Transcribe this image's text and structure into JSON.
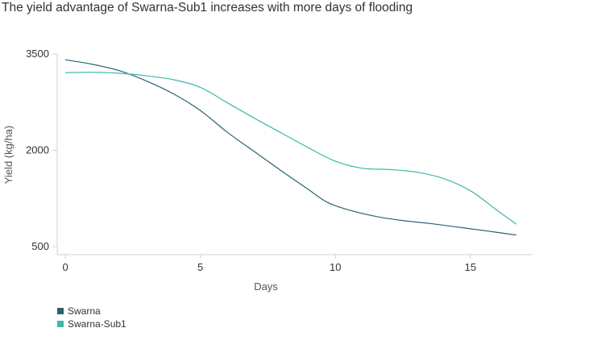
{
  "chart_data": {
    "type": "line",
    "title": "The yield advantage of Swarna-Sub1 increases with more days of flooding",
    "xlabel": "Days",
    "ylabel": "Yield (kg/ha)",
    "xlim": [
      -0.3,
      17.3
    ],
    "ylim": [
      500,
      3500
    ],
    "x_ticks": [
      0,
      5,
      10,
      15
    ],
    "y_ticks": [
      500,
      2000,
      3500
    ],
    "grid": false,
    "legend_position": "bottom-left",
    "series": [
      {
        "name": "Swarna",
        "color": "#2b6272",
        "x": [
          0,
          1,
          2,
          3,
          4,
          5,
          6,
          7,
          8,
          9,
          9.7,
          10.5,
          11.5,
          12.5,
          13.5,
          14.5,
          15.5,
          16.7
        ],
        "y": [
          3410,
          3340,
          3240,
          3080,
          2880,
          2620,
          2280,
          1980,
          1680,
          1390,
          1190,
          1070,
          970,
          905,
          860,
          805,
          750,
          680
        ]
      },
      {
        "name": "Swarna-Sub1",
        "color": "#3bb8ab",
        "x": [
          0,
          1,
          2,
          3,
          4,
          5,
          6,
          7,
          8,
          9,
          10,
          11,
          12,
          13,
          14,
          15,
          16,
          16.7
        ],
        "y": [
          3210,
          3215,
          3200,
          3160,
          3100,
          2980,
          2740,
          2500,
          2270,
          2040,
          1830,
          1720,
          1700,
          1660,
          1560,
          1370,
          1060,
          850
        ]
      }
    ]
  }
}
